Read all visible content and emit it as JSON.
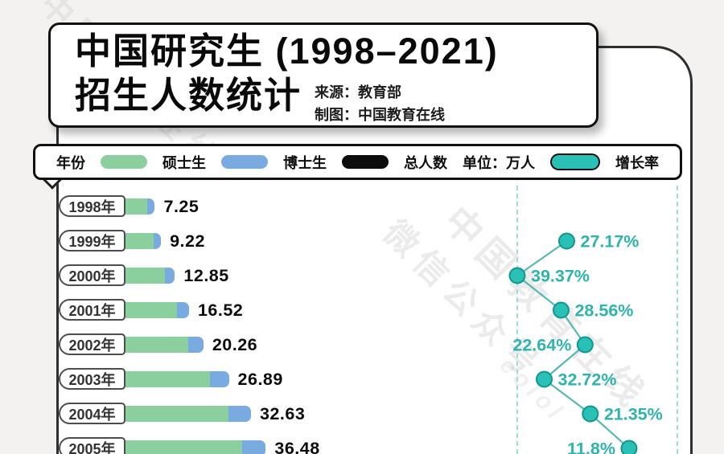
{
  "page": {
    "title_line1": "中国研究生 (1998–2021)",
    "title_line2": "招生人数统计",
    "source": "来源：教育部",
    "credit": "制图：中国教育在线"
  },
  "legend": {
    "items": [
      {
        "label": "年份"
      },
      {
        "swatch": "masters",
        "label": "硕士生"
      },
      {
        "swatch": "doctoral",
        "label": "博士生"
      },
      {
        "swatch": "total",
        "label": "总人数"
      },
      {
        "label": "单位：万人"
      },
      {
        "swatch": "growth",
        "swatch_outline": true,
        "label": "增长率"
      }
    ]
  },
  "colors": {
    "masters": "#8ccf9e",
    "doctoral": "#7aabe0",
    "total": "#0d0d0d",
    "growth": "#2bc0b5",
    "growth_dark": "#0f968e",
    "growth_line": "#57b8b1",
    "growth_text": "#2fb3ab"
  },
  "watermarks": [
    {
      "text": "微信公众号"
    },
    {
      "text": "中国教育在线"
    },
    {
      "text": "eolol"
    },
    {
      "text": "中国教育在线"
    }
  ],
  "chart_data": {
    "type": "bar",
    "title": "中国研究生 (1998–2021) 招生人数统计",
    "unit": "万人",
    "categories": [
      "1998年",
      "1999年",
      "2000年",
      "2001年",
      "2002年",
      "2003年",
      "2004年",
      "2005年"
    ],
    "totals": [
      7.25,
      9.22,
      12.85,
      16.52,
      20.26,
      26.89,
      32.63,
      36.48
    ],
    "series": [
      {
        "name": "硕士生",
        "values": [
          5.75,
          7.32,
          10.3,
          13.32,
          16.36,
          21.99,
          26.83,
          30.28
        ]
      },
      {
        "name": "博士生",
        "values": [
          1.5,
          1.9,
          2.55,
          3.2,
          3.9,
          4.9,
          5.8,
          6.2
        ]
      }
    ],
    "growth_line": {
      "name": "增长率",
      "values": [
        null,
        27.17,
        39.37,
        28.56,
        22.64,
        32.72,
        21.35,
        11.8
      ],
      "label_side": [
        null,
        "right",
        "right",
        "right",
        "left",
        "right",
        "right",
        "left"
      ]
    }
  }
}
